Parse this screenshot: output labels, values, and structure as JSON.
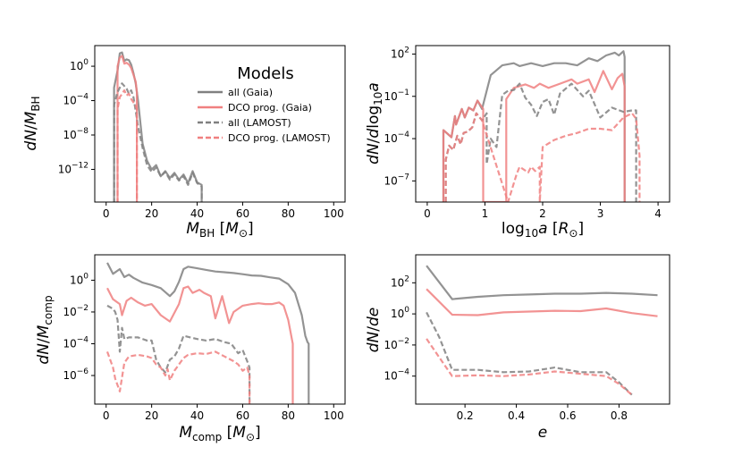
{
  "colors": {
    "all": "#808080",
    "dco": "#f08080",
    "overlap": "#a04040"
  },
  "legend": {
    "title": "Models",
    "entries": [
      {
        "label": "all (Gaia)",
        "color": "#808080",
        "style": "solid"
      },
      {
        "label": "DCO prog. (Gaia)",
        "color": "#f08080",
        "style": "solid"
      },
      {
        "label": "all (LAMOST)",
        "color": "#808080",
        "style": "dashed"
      },
      {
        "label": "DCO prog. (LAMOST)",
        "color": "#f08080",
        "style": "dashed"
      }
    ]
  },
  "chart_data": [
    {
      "id": "mbh",
      "type": "line",
      "scale": "log",
      "xlim": [
        -5,
        105
      ],
      "ylim": [
        -15.8,
        2.4
      ],
      "xticks": [
        0,
        20,
        40,
        60,
        80,
        100
      ],
      "xtick_labels": [
        "0",
        "20",
        "40",
        "60",
        "80",
        "100"
      ],
      "yticks": [
        0,
        -4,
        -8,
        -12
      ],
      "ytick_labels": [
        "10^0",
        "10^-4",
        "10^-8",
        "10^-12"
      ],
      "xlabel": "M_BH [M_⊙]",
      "ylabel": "dN/M_BH",
      "series": [
        {
          "name": "all (Gaia)",
          "style": "solid",
          "x": [
            3.5,
            3.5,
            5,
            6,
            7,
            8,
            9,
            10,
            11,
            12,
            13,
            14,
            16,
            18,
            20,
            22,
            24,
            26,
            28,
            30,
            32,
            34,
            36,
            38,
            40,
            42,
            42
          ],
          "y": [
            -16,
            -2.5,
            -0.5,
            1.5,
            1.6,
            0.6,
            0.8,
            0.7,
            0.2,
            -0.8,
            -2,
            -4,
            -9,
            -11,
            -12,
            -11.5,
            -12.8,
            -12.2,
            -13,
            -12.4,
            -13.2,
            -12.6,
            -13.6,
            -12.2,
            -13.5,
            -13.8,
            -16
          ]
        },
        {
          "name": "DCO prog. (Gaia)",
          "style": "solid",
          "x": [
            5,
            5,
            6,
            7,
            8,
            9,
            10,
            11,
            12,
            13,
            13.5,
            13.5
          ],
          "y": [
            -16,
            0,
            1,
            1.2,
            0.3,
            0.4,
            0.2,
            -0.2,
            -1,
            -1.8,
            -3,
            -16
          ]
        },
        {
          "name": "all (LAMOST)",
          "style": "dashed",
          "x": [
            3.5,
            3.5,
            5,
            7,
            9,
            10,
            11,
            12,
            13,
            14,
            16,
            18,
            20,
            22,
            24,
            26,
            28,
            30,
            32,
            34,
            36,
            38,
            40,
            42,
            42
          ],
          "y": [
            -16,
            -4.5,
            -3,
            -2,
            -2.6,
            -3.2,
            -2.8,
            -3.6,
            -5.2,
            -7,
            -9.5,
            -11.5,
            -12.3,
            -11.8,
            -12.8,
            -12.3,
            -13.2,
            -12.6,
            -13.3,
            -12.8,
            -13.8,
            -12.4,
            -13.6,
            -14,
            -16
          ]
        },
        {
          "name": "DCO prog. (LAMOST)",
          "style": "dashed",
          "x": [
            5,
            5,
            6,
            8,
            9,
            10,
            11,
            12,
            13,
            13.5,
            13.5
          ],
          "y": [
            -16,
            -5,
            -3.6,
            -2.8,
            -3.4,
            -3.2,
            -3.8,
            -4.2,
            -4.6,
            -5,
            -16
          ]
        }
      ]
    },
    {
      "id": "loga",
      "type": "line",
      "scale": "log",
      "xlim": [
        -0.2,
        4.2
      ],
      "ylim": [
        -8.5,
        2.6
      ],
      "xticks": [
        0,
        1,
        2,
        3,
        4
      ],
      "xtick_labels": [
        "0",
        "1",
        "2",
        "3",
        "4"
      ],
      "yticks": [
        2,
        -1,
        -4,
        -7
      ],
      "ytick_labels": [
        "10^2",
        "10^-1",
        "10^-4",
        "10^-7"
      ],
      "xlabel": "log10 a [R_⊙]",
      "ylabel": "dN/dlog10 a",
      "series": [
        {
          "name": "all (Gaia)",
          "style": "solid",
          "x": [
            0.28,
            0.28,
            0.42,
            0.48,
            0.5,
            0.6,
            0.65,
            0.72,
            0.8,
            0.87,
            0.95,
            1.1,
            1.3,
            1.5,
            1.6,
            1.8,
            2.0,
            2.2,
            2.4,
            2.6,
            2.8,
            2.95,
            3.1,
            3.25,
            3.32,
            3.4,
            3.42,
            3.42
          ],
          "y": [
            -8.5,
            -3.4,
            -3.9,
            -2.4,
            -3.0,
            -1.9,
            -2.5,
            -1.8,
            -2.0,
            -1.3,
            -1.9,
            0.5,
            1.2,
            1.35,
            1.15,
            1.35,
            1.15,
            1.35,
            1.35,
            1.2,
            1.7,
            1.5,
            1.9,
            2.1,
            1.9,
            2.2,
            1.8,
            -8.5
          ]
        },
        {
          "name": "DCO prog. (Gaia)",
          "style": "solid",
          "x": [
            0.28,
            0.28,
            0.42,
            0.48,
            0.5,
            0.6,
            0.65,
            0.72,
            0.8,
            0.87,
            0.97,
            0.97,
            1.37,
            1.37,
            1.5,
            1.7,
            1.85,
            1.95,
            2.1,
            2.3,
            2.5,
            2.6,
            2.8,
            2.9,
            3.05,
            3.2,
            3.3,
            3.38,
            3.42,
            3.42
          ],
          "y": [
            -8.5,
            -3.4,
            -3.9,
            -2.4,
            -3.0,
            -1.9,
            -2.5,
            -1.8,
            -2.0,
            -1.3,
            -1.9,
            -8.5,
            -8.5,
            -1.2,
            -0.4,
            -0.15,
            -0.4,
            -0.1,
            -0.4,
            -0.1,
            0.2,
            -0.1,
            0.2,
            -0.7,
            0.8,
            -0.5,
            0.3,
            0.6,
            -0.3,
            -8.5
          ]
        },
        {
          "name": "all (LAMOST)",
          "style": "dashed",
          "x": [
            0.32,
            0.32,
            0.38,
            0.45,
            0.52,
            0.58,
            0.63,
            0.7,
            0.78,
            0.85,
            0.95,
            1.03,
            1.03,
            1.1,
            1.2,
            1.3,
            1.4,
            1.5,
            1.6,
            1.7,
            1.8,
            1.9,
            2.0,
            2.1,
            2.2,
            2.3,
            2.5,
            2.7,
            2.8,
            3.0,
            3.2,
            3.4,
            3.55,
            3.62,
            3.62
          ],
          "y": [
            -8.5,
            -5.5,
            -4.5,
            -4.8,
            -3.8,
            -4.4,
            -3.6,
            -3.5,
            -3.2,
            -2.2,
            -2.7,
            -2.2,
            -5.8,
            -4.0,
            -4.6,
            -0.9,
            -0.6,
            -0.55,
            -0.1,
            -1.1,
            -1.6,
            -2.4,
            -1.4,
            -1.2,
            -2.3,
            -0.8,
            -0.1,
            -1.0,
            -0.6,
            -2.5,
            -1.8,
            -2.1,
            -2.0,
            -2.0,
            -8.5
          ]
        },
        {
          "name": "DCO prog. (LAMOST)",
          "style": "dashed",
          "x": [
            0.32,
            0.32,
            0.38,
            0.45,
            0.52,
            0.58,
            0.63,
            0.7,
            0.78,
            0.85,
            0.95,
            1.4,
            1.4,
            1.55,
            1.6,
            1.75,
            1.8,
            1.87,
            1.95,
            1.95,
            2.0,
            2.2,
            2.4,
            2.6,
            2.8,
            3.0,
            3.2,
            3.4,
            3.55,
            3.62,
            3.68,
            3.68
          ],
          "y": [
            -8.5,
            -5.5,
            -4.5,
            -4.8,
            -3.8,
            -4.4,
            -3.6,
            -3.5,
            -3.2,
            -2.2,
            -2.7,
            -8.5,
            -8.5,
            -6.5,
            -6.0,
            -6.4,
            -6.0,
            -6.3,
            -6.0,
            -8.5,
            -4.6,
            -4.1,
            -3.8,
            -3.6,
            -3.3,
            -3.3,
            -3.4,
            -2.5,
            -2.2,
            -2.6,
            -5.2,
            -8.5
          ]
        }
      ]
    },
    {
      "id": "mcomp",
      "type": "line",
      "scale": "log",
      "xlim": [
        -5,
        105
      ],
      "ylim": [
        -7.8,
        1.6
      ],
      "xticks": [
        0,
        20,
        40,
        60,
        80,
        100
      ],
      "xtick_labels": [
        "0",
        "20",
        "40",
        "60",
        "80",
        "100"
      ],
      "yticks": [
        0,
        -2,
        -4,
        -6
      ],
      "ytick_labels": [
        "10^0",
        "10^-2",
        "10^-4",
        "10^-6"
      ],
      "xlabel": "M_comp [M_⊙]",
      "ylabel": "dN/M_comp",
      "series": [
        {
          "name": "all (Gaia)",
          "style": "solid",
          "x": [
            0.5,
            3,
            6,
            8,
            10,
            12,
            16,
            20,
            24,
            28,
            30,
            32,
            34,
            36,
            40,
            44,
            48,
            52,
            56,
            60,
            64,
            68,
            72,
            76,
            80,
            83,
            86,
            87.5,
            88.5,
            89,
            89
          ],
          "y": [
            1.1,
            0.4,
            0.7,
            0.2,
            0.35,
            0.15,
            -0.15,
            -0.3,
            -0.5,
            -1.0,
            -0.7,
            -0.1,
            0.7,
            0.85,
            0.75,
            0.65,
            0.55,
            0.5,
            0.45,
            0.38,
            0.3,
            0.28,
            0.18,
            0.1,
            -0.25,
            -0.8,
            -2.2,
            -3.5,
            -3.9,
            -4.0,
            -8.0
          ]
        },
        {
          "name": "DCO prog. (Gaia)",
          "style": "solid",
          "x": [
            0.5,
            3,
            6,
            7,
            9,
            11,
            14,
            17,
            20,
            24,
            28,
            32,
            34,
            36,
            38,
            41,
            43,
            46,
            48,
            51,
            54,
            56,
            60,
            64,
            67,
            70,
            73,
            76,
            78,
            80,
            82,
            82
          ],
          "y": [
            -0.5,
            -1.2,
            -1.5,
            -2.2,
            -1.3,
            -1.1,
            -1.4,
            -1.6,
            -1.5,
            -2.2,
            -2.6,
            -1.5,
            -0.5,
            -0.4,
            -0.8,
            -0.6,
            -0.8,
            -1.0,
            -2.4,
            -1.0,
            -2.7,
            -2.0,
            -1.6,
            -1.5,
            -1.45,
            -1.5,
            -1.5,
            -1.4,
            -1.6,
            -2.5,
            -4.0,
            -8.0
          ]
        },
        {
          "name": "all (LAMOST)",
          "style": "dashed",
          "x": [
            0.5,
            3,
            4,
            5,
            6,
            7,
            8,
            10,
            14,
            18,
            20,
            22,
            24,
            26,
            28,
            30,
            32,
            34,
            37,
            40,
            44,
            48,
            52,
            55,
            58,
            60,
            62,
            63,
            63
          ],
          "y": [
            -1.6,
            -1.8,
            -2.0,
            -2.5,
            -4.5,
            -3.0,
            -3.7,
            -3.6,
            -3.6,
            -3.8,
            -3.8,
            -5.0,
            -5.5,
            -5.8,
            -5.0,
            -4.8,
            -4.3,
            -3.5,
            -3.6,
            -3.7,
            -3.8,
            -3.7,
            -3.9,
            -4.0,
            -4.6,
            -4.4,
            -5.1,
            -5.5,
            -8.0
          ]
        },
        {
          "name": "DCO prog. (LAMOST)",
          "style": "dashed",
          "x": [
            0.5,
            3,
            4,
            6,
            8,
            10,
            14,
            18,
            20,
            22,
            24,
            26,
            27,
            28,
            30,
            32,
            34,
            36,
            40,
            44,
            48,
            52,
            56,
            58,
            60,
            62,
            63,
            63
          ],
          "y": [
            -4.5,
            -5.5,
            -6.2,
            -7.0,
            -5.2,
            -4.8,
            -4.7,
            -4.8,
            -4.9,
            -5.3,
            -5.5,
            -6.0,
            -5.6,
            -6.3,
            -5.7,
            -5.3,
            -4.9,
            -4.7,
            -4.6,
            -4.65,
            -4.5,
            -4.8,
            -5.1,
            -5.3,
            -5.7,
            -5.5,
            -6.0,
            -8.0
          ]
        }
      ]
    },
    {
      "id": "ecc",
      "type": "line",
      "scale": "log",
      "xlim": [
        0.008,
        0.997
      ],
      "ylim": [
        -5.8,
        3.8
      ],
      "xticks": [
        0.2,
        0.4,
        0.6,
        0.8
      ],
      "xtick_labels": [
        "0.2",
        "0.4",
        "0.6",
        "0.8"
      ],
      "yticks": [
        2,
        0,
        -2,
        -4
      ],
      "ytick_labels": [
        "10^2",
        "10^0",
        "10^-2",
        "10^-4"
      ],
      "xlabel": "e",
      "ylabel": "dN/de",
      "series": [
        {
          "name": "all (Gaia)",
          "style": "solid",
          "x": [
            0.05,
            0.15,
            0.25,
            0.35,
            0.45,
            0.55,
            0.65,
            0.75,
            0.85,
            0.95
          ],
          "y": [
            3.1,
            0.95,
            1.1,
            1.2,
            1.25,
            1.3,
            1.3,
            1.35,
            1.3,
            1.2
          ]
        },
        {
          "name": "DCO prog. (Gaia)",
          "style": "solid",
          "x": [
            0.05,
            0.15,
            0.25,
            0.35,
            0.45,
            0.55,
            0.65,
            0.75,
            0.85,
            0.95
          ],
          "y": [
            1.6,
            -0.05,
            -0.08,
            0.1,
            0.15,
            0.2,
            0.18,
            0.35,
            0.05,
            -0.15
          ]
        },
        {
          "name": "all (LAMOST)",
          "style": "dashed",
          "x": [
            0.05,
            0.1,
            0.15,
            0.25,
            0.35,
            0.45,
            0.55,
            0.65,
            0.75,
            0.8,
            0.85
          ],
          "y": [
            0.1,
            -1.5,
            -3.6,
            -3.6,
            -3.75,
            -3.7,
            -3.45,
            -3.75,
            -3.75,
            -4.4,
            -5.2
          ]
        },
        {
          "name": "DCO prog. (LAMOST)",
          "style": "dashed",
          "x": [
            0.05,
            0.1,
            0.15,
            0.25,
            0.35,
            0.45,
            0.55,
            0.65,
            0.75,
            0.8,
            0.85
          ],
          "y": [
            -1.6,
            -2.8,
            -4.0,
            -3.95,
            -4.0,
            -3.9,
            -3.7,
            -3.85,
            -4.0,
            -4.5,
            -5.2
          ]
        }
      ]
    }
  ]
}
